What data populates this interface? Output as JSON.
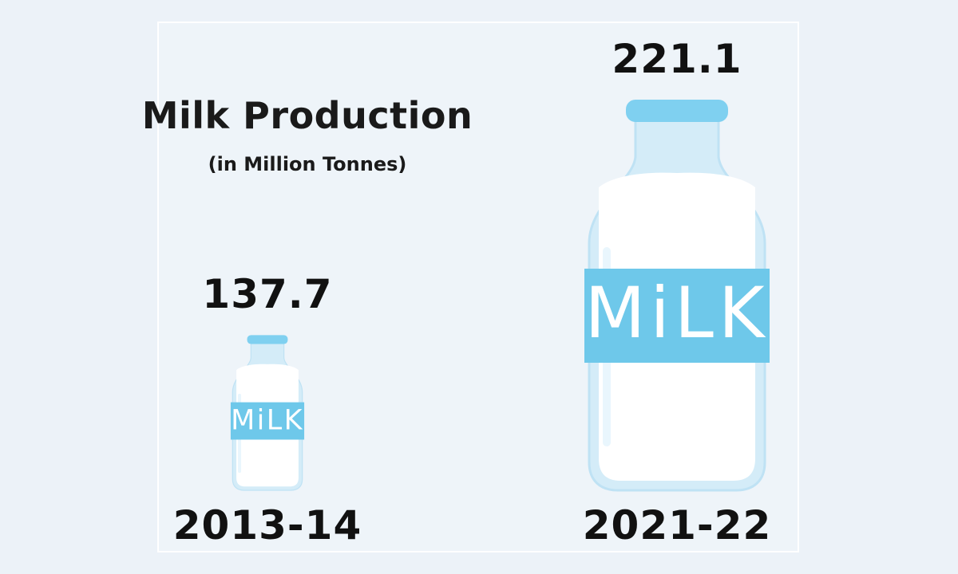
{
  "chart_data": {
    "type": "bar",
    "title": "Milk Production",
    "subtitle": "(in Million Tonnes)",
    "categories": [
      "2013-14",
      "2021-22"
    ],
    "values": [
      137.7,
      221.1
    ],
    "bar_label": "MiLK",
    "colors": {
      "label_band": "#6ec8ea",
      "cap": "#7fd0f0",
      "milk": "#ffffff",
      "glass": "#d4ecf8",
      "text": "#111111"
    }
  }
}
